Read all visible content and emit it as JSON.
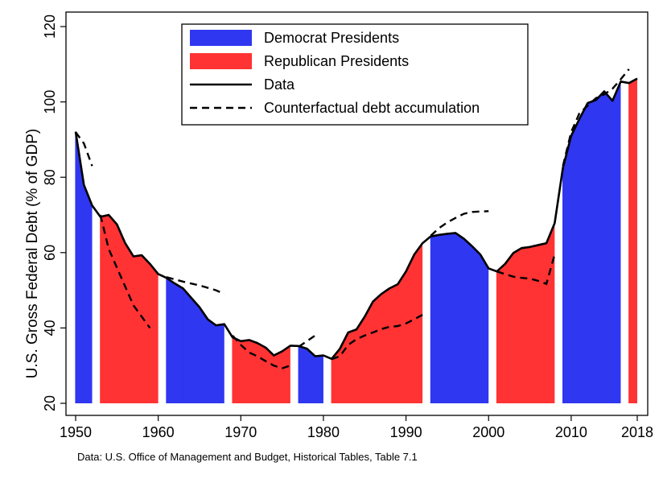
{
  "chart_data": {
    "type": "area",
    "ylabel": "U.S. Gross Federal Debt (% of GDP)",
    "xlabel": "",
    "xlim": [
      1950,
      2018
    ],
    "ylim": [
      20,
      120
    ],
    "x_ticks": [
      1950,
      1960,
      1970,
      1980,
      1990,
      2000,
      2010,
      2018
    ],
    "y_ticks": [
      20,
      40,
      60,
      80,
      100,
      120
    ],
    "grid": false,
    "legend": {
      "placement": "top-center",
      "entries": [
        {
          "label": "Democrat Presidents",
          "kind": "fill",
          "color": "#2f37f0"
        },
        {
          "label": "Republican Presidents",
          "kind": "fill",
          "color": "#ff3333"
        },
        {
          "label": "Data",
          "kind": "solid-line",
          "color": "#000000"
        },
        {
          "label": "Counterfactual debt accumulation",
          "kind": "dashed-line",
          "color": "#000000"
        }
      ]
    },
    "note": "Data: U.S. Office of Management and Budget, Historical Tables, Table 7.1",
    "baseline": 20,
    "series": [
      {
        "name": "Data",
        "style": "solid",
        "points": [
          [
            1950,
            92.1
          ],
          [
            1951,
            78.0
          ],
          [
            1952,
            72.5
          ],
          [
            1953,
            69.5
          ],
          [
            1954,
            70.0
          ],
          [
            1955,
            67.5
          ],
          [
            1956,
            62.5
          ],
          [
            1957,
            59.0
          ],
          [
            1958,
            59.3
          ],
          [
            1959,
            57.0
          ],
          [
            1960,
            54.3
          ],
          [
            1961,
            53.3
          ],
          [
            1962,
            51.8
          ],
          [
            1963,
            50.5
          ],
          [
            1964,
            48.0
          ],
          [
            1965,
            45.5
          ],
          [
            1966,
            42.3
          ],
          [
            1967,
            40.7
          ],
          [
            1968,
            41.0
          ],
          [
            1969,
            37.5
          ],
          [
            1970,
            36.5
          ],
          [
            1971,
            36.8
          ],
          [
            1972,
            36.0
          ],
          [
            1973,
            34.8
          ],
          [
            1974,
            32.7
          ],
          [
            1975,
            33.8
          ],
          [
            1976,
            35.3
          ],
          [
            1977,
            35.2
          ],
          [
            1978,
            34.5
          ],
          [
            1979,
            32.5
          ],
          [
            1980,
            32.7
          ],
          [
            1981,
            31.8
          ],
          [
            1982,
            34.5
          ],
          [
            1983,
            38.8
          ],
          [
            1984,
            39.6
          ],
          [
            1985,
            43.0
          ],
          [
            1986,
            47.0
          ],
          [
            1987,
            49.0
          ],
          [
            1988,
            50.5
          ],
          [
            1989,
            51.6
          ],
          [
            1990,
            55.0
          ],
          [
            1991,
            59.5
          ],
          [
            1992,
            62.5
          ],
          [
            1993,
            64.3
          ],
          [
            1994,
            64.7
          ],
          [
            1995,
            65.0
          ],
          [
            1996,
            65.2
          ],
          [
            1997,
            63.7
          ],
          [
            1998,
            61.7
          ],
          [
            1999,
            59.5
          ],
          [
            2000,
            55.8
          ],
          [
            2001,
            55.0
          ],
          [
            2002,
            57.0
          ],
          [
            2003,
            59.9
          ],
          [
            2004,
            61.2
          ],
          [
            2005,
            61.5
          ],
          [
            2006,
            62.0
          ],
          [
            2007,
            62.5
          ],
          [
            2008,
            67.8
          ],
          [
            2009,
            82.5
          ],
          [
            2010,
            91.0
          ],
          [
            2011,
            95.5
          ],
          [
            2012,
            99.7
          ],
          [
            2013,
            100.5
          ],
          [
            2014,
            102.8
          ],
          [
            2015,
            100.3
          ],
          [
            2016,
            105.4
          ],
          [
            2017,
            105.0
          ],
          [
            2018,
            106.2
          ]
        ]
      },
      {
        "name": "Counterfactual debt accumulation",
        "style": "dashed",
        "segments": [
          [
            [
              1950,
              92.0
            ],
            [
              1951,
              89.0
            ],
            [
              1952,
              83.0
            ]
          ],
          [
            [
              1953,
              70.0
            ],
            [
              1954,
              61.0
            ],
            [
              1955,
              56.0
            ],
            [
              1956,
              51.0
            ],
            [
              1957,
              46.0
            ],
            [
              1958,
              43.0
            ],
            [
              1959,
              40.0
            ]
          ],
          [
            [
              1961,
              53.5
            ],
            [
              1963,
              52.3
            ],
            [
              1965,
              51.3
            ],
            [
              1967,
              50.0
            ],
            [
              1968,
              49.0
            ]
          ],
          [
            [
              1969,
              38.0
            ],
            [
              1970,
              35.5
            ],
            [
              1971,
              33.5
            ],
            [
              1972,
              32.5
            ],
            [
              1973,
              31.2
            ],
            [
              1974,
              30.0
            ],
            [
              1975,
              29.3
            ],
            [
              1976,
              30.0
            ]
          ],
          [
            [
              1977,
              35.0
            ],
            [
              1978,
              36.5
            ],
            [
              1979,
              38.0
            ]
          ],
          [
            [
              1981,
              31.7
            ],
            [
              1982,
              32.5
            ],
            [
              1983,
              35.5
            ],
            [
              1984,
              37.0
            ],
            [
              1985,
              38.0
            ],
            [
              1986,
              38.8
            ],
            [
              1987,
              39.7
            ],
            [
              1988,
              40.3
            ],
            [
              1989,
              40.5
            ],
            [
              1990,
              41.2
            ],
            [
              1991,
              42.3
            ],
            [
              1992,
              43.5
            ]
          ],
          [
            [
              1993,
              64.5
            ],
            [
              1994,
              66.5
            ],
            [
              1995,
              68.0
            ],
            [
              1996,
              69.2
            ],
            [
              1997,
              70.3
            ],
            [
              1998,
              70.8
            ],
            [
              1999,
              70.9
            ],
            [
              2000,
              71.0
            ]
          ],
          [
            [
              2001,
              55.0
            ],
            [
              2002,
              54.3
            ],
            [
              2003,
              53.6
            ],
            [
              2004,
              53.3
            ],
            [
              2005,
              53.1
            ],
            [
              2006,
              52.5
            ],
            [
              2007,
              51.7
            ],
            [
              2008,
              59.5
            ]
          ],
          [
            [
              2009,
              83.0
            ],
            [
              2010,
              92.0
            ],
            [
              2011,
              97.0
            ],
            [
              2012,
              99.0
            ],
            [
              2013,
              101.0
            ],
            [
              2014,
              102.0
            ],
            [
              2015,
              103.5
            ],
            [
              2016,
              106.0
            ],
            [
              2017,
              108.7
            ]
          ]
        ]
      }
    ],
    "party_periods": [
      {
        "party": "Democrat",
        "start": 1950,
        "end": 1952
      },
      {
        "party": "Republican",
        "start": 1953,
        "end": 1960
      },
      {
        "party": "Democrat",
        "start": 1961,
        "end": 1963
      },
      {
        "party": "Democrat",
        "start": 1963,
        "end": 1968
      },
      {
        "party": "Republican",
        "start": 1969,
        "end": 1974
      },
      {
        "party": "Republican",
        "start": 1974,
        "end": 1976
      },
      {
        "party": "Democrat",
        "start": 1977,
        "end": 1980
      },
      {
        "party": "Republican",
        "start": 1981,
        "end": 1989
      },
      {
        "party": "Republican",
        "start": 1989,
        "end": 1992
      },
      {
        "party": "Democrat",
        "start": 1993,
        "end": 2000
      },
      {
        "party": "Republican",
        "start": 2001,
        "end": 2008
      },
      {
        "party": "Democrat",
        "start": 2009,
        "end": 2016
      },
      {
        "party": "Republican",
        "start": 2017,
        "end": 2018
      }
    ],
    "colors": {
      "democrat": "#2f37f0",
      "republican": "#ff3333",
      "line": "#000000"
    }
  }
}
